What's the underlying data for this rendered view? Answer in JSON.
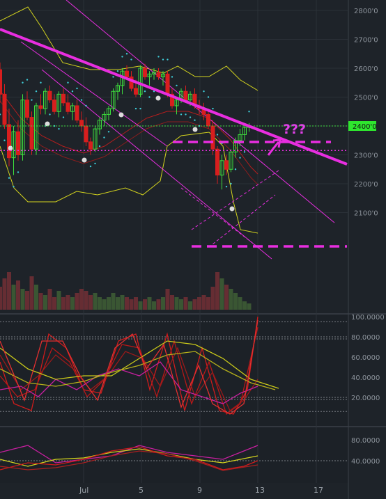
{
  "chart_data": [
    {
      "type": "candlestick",
      "title": "",
      "xlabel": "",
      "ylabel": "",
      "ylim": [
        2000,
        2830
      ],
      "y_ticks": [
        "2800'0",
        "2700'0",
        "2600'0",
        "2500'0",
        "2400'0",
        "2300'0",
        "2200'0",
        "2100'0"
      ],
      "x_ticks": [
        "Jul",
        "5",
        "9",
        "13",
        "17"
      ],
      "last_price_label": "2400'0",
      "annotation_text": "???",
      "candles": [
        {
          "o": 2595,
          "h": 2620,
          "l": 2480,
          "c": 2510
        },
        {
          "o": 2510,
          "h": 2545,
          "l": 2390,
          "c": 2405
        },
        {
          "o": 2405,
          "h": 2460,
          "l": 2260,
          "c": 2290
        },
        {
          "o": 2290,
          "h": 2400,
          "l": 2230,
          "c": 2380
        },
        {
          "o": 2380,
          "h": 2420,
          "l": 2280,
          "c": 2300
        },
        {
          "o": 2300,
          "h": 2510,
          "l": 2280,
          "c": 2490
        },
        {
          "o": 2490,
          "h": 2520,
          "l": 2420,
          "c": 2430
        },
        {
          "o": 2430,
          "h": 2450,
          "l": 2300,
          "c": 2320
        },
        {
          "o": 2320,
          "h": 2480,
          "l": 2300,
          "c": 2470
        },
        {
          "o": 2470,
          "h": 2510,
          "l": 2440,
          "c": 2460
        },
        {
          "o": 2460,
          "h": 2530,
          "l": 2440,
          "c": 2520
        },
        {
          "o": 2520,
          "h": 2540,
          "l": 2480,
          "c": 2490
        },
        {
          "o": 2490,
          "h": 2510,
          "l": 2440,
          "c": 2450
        },
        {
          "o": 2450,
          "h": 2520,
          "l": 2430,
          "c": 2510
        },
        {
          "o": 2510,
          "h": 2530,
          "l": 2470,
          "c": 2480
        },
        {
          "o": 2480,
          "h": 2510,
          "l": 2440,
          "c": 2450
        },
        {
          "o": 2450,
          "h": 2480,
          "l": 2420,
          "c": 2470
        },
        {
          "o": 2470,
          "h": 2490,
          "l": 2410,
          "c": 2420
        },
        {
          "o": 2420,
          "h": 2450,
          "l": 2380,
          "c": 2400
        },
        {
          "o": 2400,
          "h": 2430,
          "l": 2330,
          "c": 2345
        },
        {
          "o": 2345,
          "h": 2360,
          "l": 2300,
          "c": 2320
        },
        {
          "o": 2320,
          "h": 2400,
          "l": 2310,
          "c": 2390
        },
        {
          "o": 2390,
          "h": 2430,
          "l": 2370,
          "c": 2420
        },
        {
          "o": 2420,
          "h": 2450,
          "l": 2400,
          "c": 2440
        },
        {
          "o": 2440,
          "h": 2470,
          "l": 2420,
          "c": 2460
        },
        {
          "o": 2460,
          "h": 2530,
          "l": 2450,
          "c": 2520
        },
        {
          "o": 2520,
          "h": 2550,
          "l": 2490,
          "c": 2540
        },
        {
          "o": 2540,
          "h": 2600,
          "l": 2510,
          "c": 2590
        },
        {
          "o": 2590,
          "h": 2610,
          "l": 2560,
          "c": 2570
        },
        {
          "o": 2570,
          "h": 2590,
          "l": 2520,
          "c": 2530
        },
        {
          "o": 2530,
          "h": 2560,
          "l": 2500,
          "c": 2510
        },
        {
          "o": 2510,
          "h": 2610,
          "l": 2500,
          "c": 2600
        },
        {
          "o": 2600,
          "h": 2615,
          "l": 2560,
          "c": 2570
        },
        {
          "o": 2570,
          "h": 2590,
          "l": 2540,
          "c": 2580
        },
        {
          "o": 2580,
          "h": 2600,
          "l": 2560,
          "c": 2585
        },
        {
          "o": 2585,
          "h": 2600,
          "l": 2560,
          "c": 2570
        },
        {
          "o": 2570,
          "h": 2590,
          "l": 2540,
          "c": 2580
        },
        {
          "o": 2580,
          "h": 2590,
          "l": 2500,
          "c": 2510
        },
        {
          "o": 2510,
          "h": 2530,
          "l": 2460,
          "c": 2470
        },
        {
          "o": 2470,
          "h": 2500,
          "l": 2440,
          "c": 2490
        },
        {
          "o": 2490,
          "h": 2530,
          "l": 2480,
          "c": 2520
        },
        {
          "o": 2520,
          "h": 2540,
          "l": 2480,
          "c": 2490
        },
        {
          "o": 2490,
          "h": 2520,
          "l": 2470,
          "c": 2510
        },
        {
          "o": 2510,
          "h": 2530,
          "l": 2460,
          "c": 2470
        },
        {
          "o": 2470,
          "h": 2490,
          "l": 2440,
          "c": 2460
        },
        {
          "o": 2460,
          "h": 2480,
          "l": 2420,
          "c": 2440
        },
        {
          "o": 2440,
          "h": 2460,
          "l": 2390,
          "c": 2400
        },
        {
          "o": 2400,
          "h": 2420,
          "l": 2300,
          "c": 2320
        },
        {
          "o": 2320,
          "h": 2330,
          "l": 2200,
          "c": 2230
        },
        {
          "o": 2230,
          "h": 2300,
          "l": 2180,
          "c": 2280
        },
        {
          "o": 2280,
          "h": 2300,
          "l": 2230,
          "c": 2250
        },
        {
          "o": 2250,
          "h": 2320,
          "l": 2240,
          "c": 2310
        },
        {
          "o": 2310,
          "h": 2360,
          "l": 2290,
          "c": 2350
        },
        {
          "o": 2350,
          "h": 2390,
          "l": 2330,
          "c": 2370
        },
        {
          "o": 2370,
          "h": 2400,
          "l": 2350,
          "c": 2395
        },
        {
          "o": 2395,
          "h": 2410,
          "l": 2380,
          "c": 2400
        }
      ],
      "volumes": [
        0.55,
        0.75,
        0.9,
        0.6,
        0.7,
        0.5,
        0.45,
        0.8,
        0.6,
        0.4,
        0.35,
        0.5,
        0.3,
        0.45,
        0.3,
        0.35,
        0.3,
        0.4,
        0.5,
        0.45,
        0.35,
        0.4,
        0.3,
        0.25,
        0.3,
        0.4,
        0.3,
        0.35,
        0.3,
        0.25,
        0.3,
        0.2,
        0.25,
        0.3,
        0.2,
        0.25,
        0.3,
        0.5,
        0.35,
        0.3,
        0.25,
        0.3,
        0.2,
        0.25,
        0.3,
        0.35,
        0.3,
        0.55,
        0.9,
        0.75,
        0.6,
        0.5,
        0.4,
        0.3,
        0.2,
        0.15
      ]
    },
    {
      "type": "line",
      "ylim": [
        0,
        100
      ],
      "y_ticks": [
        "100.0000",
        "80.0000",
        "60.0000",
        "40.0000",
        "20.0000"
      ]
    },
    {
      "type": "line",
      "y_ticks": [
        "80.0000",
        "40.0000"
      ]
    }
  ],
  "colors": {
    "background": "#1e2329",
    "up_candle": "#3de03d",
    "down_candle": "#d81e1e",
    "trendline": "#e82ee0",
    "bollinger": "#d4d41e",
    "price_label_bg": "#2ee62e"
  }
}
